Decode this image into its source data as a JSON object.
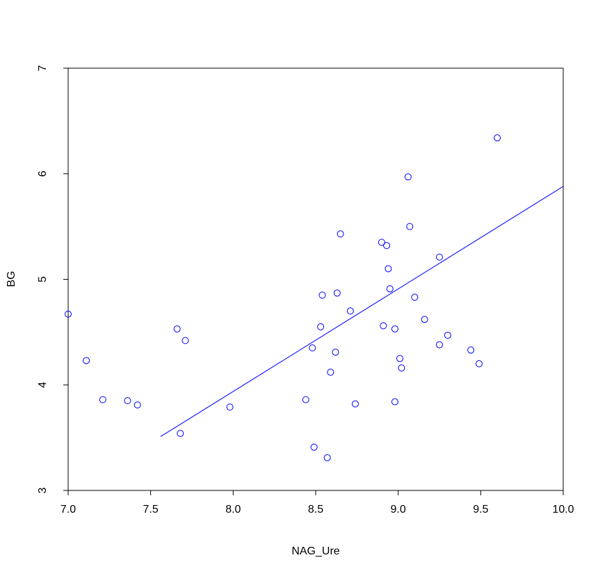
{
  "chart_data": {
    "type": "scatter",
    "xlabel": "NAG_Ure",
    "ylabel": "BG",
    "xlim": [
      7.0,
      10.0
    ],
    "ylim": [
      3,
      7
    ],
    "x_ticks": [
      "7.0",
      "7.5",
      "8.0",
      "8.5",
      "9.0",
      "9.5",
      "10.0"
    ],
    "y_ticks": [
      "3",
      "4",
      "5",
      "6",
      "7"
    ],
    "grid": false,
    "colors": {
      "points": "#0000ff",
      "line": "#0000ff",
      "axes": "#000000"
    },
    "series": [
      {
        "points": [
          {
            "x": 7.0,
            "y": 4.67
          },
          {
            "x": 7.11,
            "y": 4.23
          },
          {
            "x": 7.21,
            "y": 3.86
          },
          {
            "x": 7.36,
            "y": 3.85
          },
          {
            "x": 7.42,
            "y": 3.81
          },
          {
            "x": 7.66,
            "y": 4.53
          },
          {
            "x": 7.68,
            "y": 3.54
          },
          {
            "x": 7.71,
            "y": 4.42
          },
          {
            "x": 7.98,
            "y": 3.79
          },
          {
            "x": 8.44,
            "y": 3.86
          },
          {
            "x": 8.48,
            "y": 4.35
          },
          {
            "x": 8.49,
            "y": 3.41
          },
          {
            "x": 8.53,
            "y": 4.55
          },
          {
            "x": 8.54,
            "y": 4.85
          },
          {
            "x": 8.57,
            "y": 3.31
          },
          {
            "x": 8.59,
            "y": 4.12
          },
          {
            "x": 8.62,
            "y": 4.31
          },
          {
            "x": 8.63,
            "y": 4.87
          },
          {
            "x": 8.65,
            "y": 5.43
          },
          {
            "x": 8.71,
            "y": 4.7
          },
          {
            "x": 8.74,
            "y": 3.82
          },
          {
            "x": 8.9,
            "y": 5.35
          },
          {
            "x": 8.91,
            "y": 4.56
          },
          {
            "x": 8.93,
            "y": 5.32
          },
          {
            "x": 8.94,
            "y": 5.1
          },
          {
            "x": 8.95,
            "y": 4.91
          },
          {
            "x": 8.98,
            "y": 3.84
          },
          {
            "x": 8.98,
            "y": 4.53
          },
          {
            "x": 9.01,
            "y": 4.25
          },
          {
            "x": 9.02,
            "y": 4.16
          },
          {
            "x": 9.06,
            "y": 5.97
          },
          {
            "x": 9.07,
            "y": 5.5
          },
          {
            "x": 9.1,
            "y": 4.83
          },
          {
            "x": 9.16,
            "y": 4.62
          },
          {
            "x": 9.25,
            "y": 5.21
          },
          {
            "x": 9.25,
            "y": 4.38
          },
          {
            "x": 9.3,
            "y": 4.47
          },
          {
            "x": 9.44,
            "y": 4.33
          },
          {
            "x": 9.49,
            "y": 4.2
          },
          {
            "x": 9.6,
            "y": 6.34
          }
        ]
      }
    ],
    "fit_line": {
      "x": [
        7.56,
        10.0
      ],
      "y": [
        3.51,
        5.88
      ]
    }
  }
}
